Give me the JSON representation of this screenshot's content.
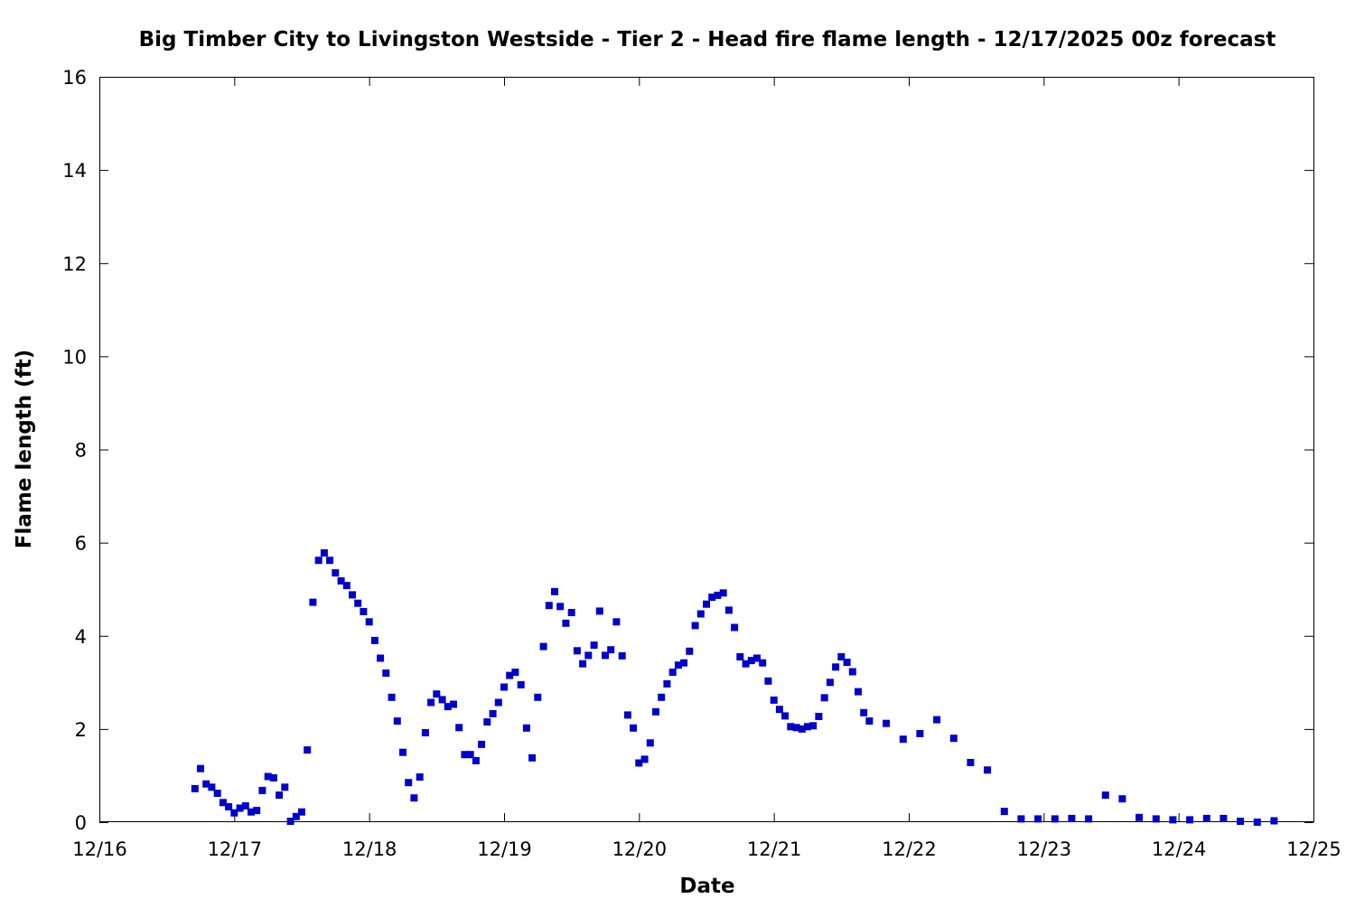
{
  "chart_data": {
    "type": "scatter",
    "title": "Big Timber City to Livingston Westside - Tier 2 - Head fire flame length - 12/17/2025 00z forecast",
    "xlabel": "Date",
    "ylabel": "Flame length (ft)",
    "xlim": [
      "2025-12-16T00:00",
      "2025-12-25T00:00"
    ],
    "ylim": [
      0,
      16
    ],
    "x_tick_labels": [
      "12/16",
      "12/17",
      "12/18",
      "12/19",
      "12/20",
      "12/21",
      "12/22",
      "12/23",
      "12/24",
      "12/25"
    ],
    "y_tick_labels": [
      "0",
      "2",
      "4",
      "6",
      "8",
      "10",
      "12",
      "14",
      "16"
    ],
    "y_ticks": [
      0,
      2,
      4,
      6,
      8,
      10,
      12,
      14,
      16
    ],
    "grid": false,
    "legend": "none",
    "marker": "square",
    "color": "#0000cc",
    "series": [
      {
        "x": [
          "2025-12-16T17:00",
          "2025-12-16T18:00",
          "2025-12-16T19:00",
          "2025-12-16T20:00",
          "2025-12-16T21:00",
          "2025-12-16T22:00",
          "2025-12-16T23:00",
          "2025-12-17T00:00",
          "2025-12-17T01:00",
          "2025-12-17T02:00",
          "2025-12-17T03:00",
          "2025-12-17T04:00",
          "2025-12-17T05:00",
          "2025-12-17T06:00",
          "2025-12-17T07:00",
          "2025-12-17T08:00",
          "2025-12-17T09:00",
          "2025-12-17T10:00",
          "2025-12-17T11:00",
          "2025-12-17T12:00",
          "2025-12-17T13:00",
          "2025-12-17T14:00",
          "2025-12-17T15:00",
          "2025-12-17T16:00",
          "2025-12-17T17:00",
          "2025-12-17T18:00",
          "2025-12-17T19:00",
          "2025-12-17T20:00",
          "2025-12-17T21:00",
          "2025-12-17T22:00",
          "2025-12-17T23:00",
          "2025-12-18T00:00",
          "2025-12-18T01:00",
          "2025-12-18T02:00",
          "2025-12-18T03:00",
          "2025-12-18T04:00",
          "2025-12-18T05:00",
          "2025-12-18T06:00",
          "2025-12-18T07:00",
          "2025-12-18T08:00",
          "2025-12-18T09:00",
          "2025-12-18T10:00",
          "2025-12-18T11:00",
          "2025-12-18T12:00",
          "2025-12-18T13:00",
          "2025-12-18T14:00",
          "2025-12-18T15:00",
          "2025-12-18T16:00",
          "2025-12-18T17:00",
          "2025-12-18T18:00",
          "2025-12-18T19:00",
          "2025-12-18T20:00",
          "2025-12-18T21:00",
          "2025-12-18T22:00",
          "2025-12-18T23:00",
          "2025-12-19T00:00",
          "2025-12-19T01:00",
          "2025-12-19T02:00",
          "2025-12-19T03:00",
          "2025-12-19T04:00",
          "2025-12-19T05:00",
          "2025-12-19T06:00",
          "2025-12-19T07:00",
          "2025-12-19T08:00",
          "2025-12-19T09:00",
          "2025-12-19T10:00",
          "2025-12-19T11:00",
          "2025-12-19T12:00",
          "2025-12-19T13:00",
          "2025-12-19T14:00",
          "2025-12-19T15:00",
          "2025-12-19T16:00",
          "2025-12-19T17:00",
          "2025-12-19T18:00",
          "2025-12-19T19:00",
          "2025-12-19T20:00",
          "2025-12-19T21:00",
          "2025-12-19T22:00",
          "2025-12-19T23:00",
          "2025-12-20T00:00",
          "2025-12-20T01:00",
          "2025-12-20T02:00",
          "2025-12-20T03:00",
          "2025-12-20T04:00",
          "2025-12-20T05:00",
          "2025-12-20T06:00",
          "2025-12-20T07:00",
          "2025-12-20T08:00",
          "2025-12-20T09:00",
          "2025-12-20T10:00",
          "2025-12-20T11:00",
          "2025-12-20T12:00",
          "2025-12-20T13:00",
          "2025-12-20T14:00",
          "2025-12-20T15:00",
          "2025-12-20T16:00",
          "2025-12-20T17:00",
          "2025-12-20T18:00",
          "2025-12-20T19:00",
          "2025-12-20T20:00",
          "2025-12-20T21:00",
          "2025-12-20T22:00",
          "2025-12-20T23:00",
          "2025-12-21T00:00",
          "2025-12-21T01:00",
          "2025-12-21T02:00",
          "2025-12-21T03:00",
          "2025-12-21T04:00",
          "2025-12-21T05:00",
          "2025-12-21T06:00",
          "2025-12-21T07:00",
          "2025-12-21T08:00",
          "2025-12-21T09:00",
          "2025-12-21T10:00",
          "2025-12-21T11:00",
          "2025-12-21T12:00",
          "2025-12-21T13:00",
          "2025-12-21T14:00",
          "2025-12-21T15:00",
          "2025-12-21T16:00",
          "2025-12-21T17:00",
          "2025-12-21T20:00",
          "2025-12-21T23:00",
          "2025-12-22T02:00",
          "2025-12-22T05:00",
          "2025-12-22T08:00",
          "2025-12-22T11:00",
          "2025-12-22T14:00",
          "2025-12-22T17:00",
          "2025-12-22T20:00",
          "2025-12-22T23:00",
          "2025-12-23T02:00",
          "2025-12-23T05:00",
          "2025-12-23T08:00",
          "2025-12-23T11:00",
          "2025-12-23T14:00",
          "2025-12-23T17:00",
          "2025-12-23T20:00",
          "2025-12-23T23:00",
          "2025-12-24T02:00",
          "2025-12-24T05:00",
          "2025-12-24T08:00",
          "2025-12-24T11:00",
          "2025-12-24T14:00",
          "2025-12-24T17:00"
        ],
        "y": [
          0.72,
          1.15,
          0.82,
          0.75,
          0.62,
          0.42,
          0.33,
          0.2,
          0.3,
          0.35,
          0.22,
          0.25,
          0.68,
          0.98,
          0.95,
          0.58,
          0.75,
          0.02,
          0.12,
          0.22,
          1.55,
          4.72,
          5.62,
          5.78,
          5.62,
          5.35,
          5.18,
          5.08,
          4.88,
          4.7,
          4.52,
          4.3,
          3.9,
          3.52,
          3.2,
          2.68,
          2.17,
          1.5,
          0.85,
          0.52,
          0.97,
          1.92,
          2.57,
          2.75,
          2.63,
          2.48,
          2.53,
          2.03,
          1.45,
          1.45,
          1.32,
          1.67,
          2.15,
          2.33,
          2.57,
          2.9,
          3.15,
          3.22,
          2.95,
          2.02,
          1.38,
          2.68,
          3.77,
          4.65,
          4.95,
          4.63,
          4.27,
          4.5,
          3.68,
          3.4,
          3.58,
          3.8,
          4.53,
          3.58,
          3.7,
          4.3,
          3.57,
          2.3,
          2.02,
          1.27,
          1.35,
          1.7,
          2.37,
          2.68,
          2.97,
          3.22,
          3.37,
          3.42,
          3.67,
          4.22,
          4.47,
          4.68,
          4.83,
          4.87,
          4.92,
          4.55,
          4.18,
          3.55,
          3.4,
          3.47,
          3.52,
          3.42,
          3.03,
          2.62,
          2.42,
          2.28,
          2.05,
          2.03,
          2.0,
          2.05,
          2.07,
          2.27,
          2.67,
          3.0,
          3.33,
          3.55,
          3.43,
          3.23,
          2.8,
          2.35,
          2.17,
          2.12,
          1.78,
          1.9,
          2.2,
          1.8,
          1.28,
          1.12,
          0.23,
          0.07,
          0.07,
          0.07,
          0.08,
          0.07,
          0.58,
          0.5,
          0.1,
          0.07,
          0.05,
          0.05,
          0.08,
          0.08,
          0.02,
          0.0,
          0.03
        ]
      }
    ]
  }
}
